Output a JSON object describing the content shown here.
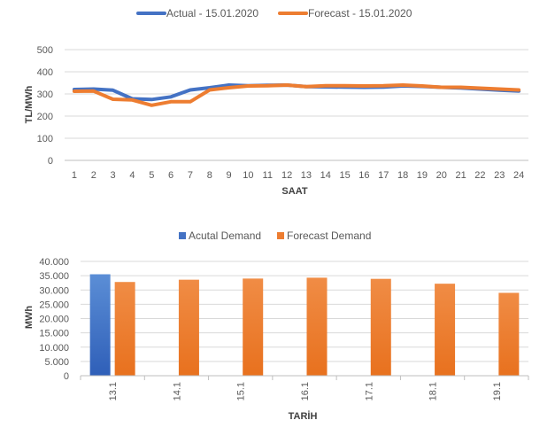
{
  "chart_data": [
    {
      "type": "line",
      "title": "",
      "xlabel": "SAAT",
      "ylabel": "TL/MWh",
      "ylim": [
        0,
        500
      ],
      "yticks": [
        0,
        100,
        200,
        300,
        400,
        500
      ],
      "grid": true,
      "legend_position": "top",
      "x": [
        "1",
        "2",
        "3",
        "4",
        "5",
        "6",
        "7",
        "8",
        "9",
        "10",
        "11",
        "12",
        "13",
        "14",
        "15",
        "16",
        "17",
        "18",
        "19",
        "20",
        "21",
        "22",
        "23",
        "24"
      ],
      "series": [
        {
          "name": "Actual - 15.01.2020",
          "color": "#4472C4",
          "values": [
            320,
            322,
            317,
            278,
            275,
            287,
            318,
            328,
            340,
            337,
            339,
            340,
            333,
            332,
            331,
            330,
            331,
            336,
            334,
            330,
            327,
            322,
            317,
            313
          ]
        },
        {
          "name": "Forecast - 15.01.2020",
          "color": "#ED7D31",
          "values": [
            312,
            313,
            276,
            273,
            249,
            265,
            265,
            318,
            328,
            336,
            337,
            340,
            333,
            337,
            337,
            336,
            337,
            340,
            336,
            330,
            330,
            326,
            322,
            318
          ]
        }
      ]
    },
    {
      "type": "bar",
      "title": "",
      "xlabel": "TARİH",
      "ylabel": "MWh",
      "ylim": [
        0,
        40000
      ],
      "yticks": [
        0,
        5000,
        10000,
        15000,
        20000,
        25000,
        30000,
        35000,
        40000
      ],
      "ytick_labels": [
        "0",
        "5.000",
        "10.000",
        "15.000",
        "20.000",
        "25.000",
        "30.000",
        "35.000",
        "40.000"
      ],
      "grid": true,
      "legend_position": "top",
      "categories": [
        "13.1",
        "14.1",
        "15.1",
        "16.1",
        "17.1",
        "18.1",
        "19.1"
      ],
      "series": [
        {
          "name": "Acutal Demand",
          "color": "#4472C4",
          "values": [
            35500,
            null,
            null,
            null,
            null,
            null,
            null
          ]
        },
        {
          "name": "Forecast Demand",
          "color": "#ED7D31",
          "values": [
            32800,
            33600,
            34000,
            34300,
            33900,
            32200,
            29000
          ]
        }
      ]
    }
  ]
}
